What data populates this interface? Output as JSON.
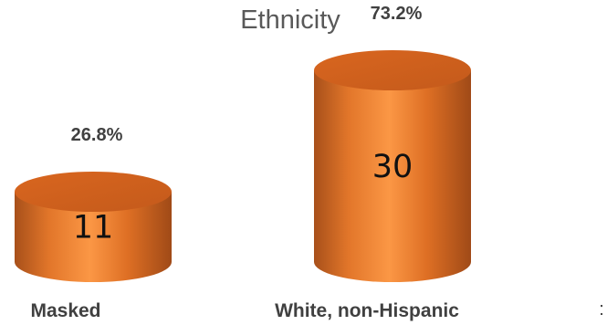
{
  "chart_data": {
    "type": "bar",
    "title": "Ethnicity",
    "categories": [
      "Masked",
      "White, non-Hispanic"
    ],
    "values": [
      11,
      30
    ],
    "percent_labels": [
      "26.8%",
      "73.2%"
    ],
    "bar_style": "3d-cylinder",
    "bar_color": "#E87A2C",
    "grid": false,
    "legend": "none"
  },
  "edge_text": ":"
}
